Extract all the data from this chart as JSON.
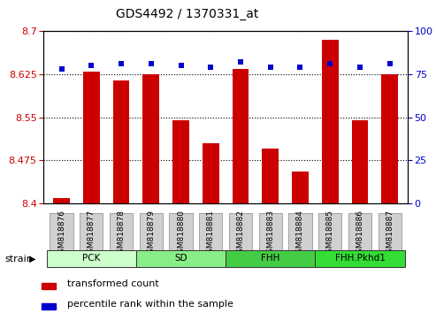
{
  "title": "GDS4492 / 1370331_at",
  "samples": [
    "GSM818876",
    "GSM818877",
    "GSM818878",
    "GSM818879",
    "GSM818880",
    "GSM818881",
    "GSM818882",
    "GSM818883",
    "GSM818884",
    "GSM818885",
    "GSM818886",
    "GSM818887"
  ],
  "bar_values": [
    8.41,
    8.63,
    8.615,
    8.625,
    8.545,
    8.505,
    8.635,
    8.495,
    8.455,
    8.685,
    8.545,
    8.625
  ],
  "percentile_values": [
    78,
    80,
    81,
    81,
    80,
    79,
    82,
    79,
    79,
    81,
    79,
    81
  ],
  "bar_color": "#cc0000",
  "percentile_color": "#0000cc",
  "ylim_left": [
    8.4,
    8.7
  ],
  "ylim_right": [
    0,
    100
  ],
  "yticks_left": [
    8.4,
    8.475,
    8.55,
    8.625,
    8.7
  ],
  "yticks_right": [
    0,
    25,
    50,
    75,
    100
  ],
  "groups": [
    {
      "label": "PCK",
      "start": 0,
      "end": 3,
      "color": "#ccffcc"
    },
    {
      "label": "SD",
      "start": 3,
      "end": 6,
      "color": "#88ee88"
    },
    {
      "label": "FHH",
      "start": 6,
      "end": 9,
      "color": "#44cc44"
    },
    {
      "label": "FHH.Pkhd1",
      "start": 9,
      "end": 12,
      "color": "#33dd33"
    }
  ],
  "bar_color_hex": "#cc0000",
  "percentile_color_hex": "#0000cc",
  "tick_label_bg": "#cccccc",
  "group_border_color": "#000000",
  "bar_width": 0.55,
  "figsize": [
    4.93,
    3.54
  ],
  "dpi": 100
}
